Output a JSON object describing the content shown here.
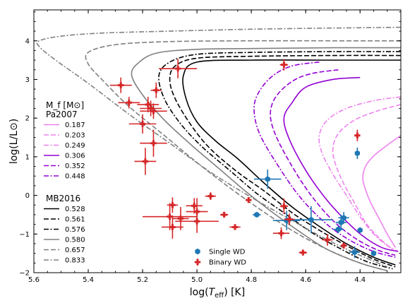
{
  "chart_data": {
    "type": "scatter",
    "xlabel": "log(T_eff) [K]",
    "ylabel": "log(L/L⊙)",
    "x_reversed": true,
    "xlim": [
      5.6,
      4.25
    ],
    "ylim": [
      -2,
      4.8
    ],
    "x_ticks": [
      5.6,
      5.4,
      5.2,
      5.0,
      4.8,
      4.6,
      4.4
    ],
    "y_ticks": [
      -2,
      -1,
      0,
      1,
      2,
      3,
      4
    ],
    "x_tick_labels": [
      "5.6",
      "5.4",
      "5.2",
      "5.0",
      "4.8",
      "4.6",
      "4.4"
    ],
    "y_tick_labels": [
      "−2",
      "−1",
      "0",
      "1",
      "2",
      "3",
      "4"
    ],
    "grid": false,
    "legend": {
      "placement": "left",
      "header": "M_f [M⊙]",
      "group1_title": "Pa2007",
      "group2_title": "MB2016"
    },
    "tracks": [
      {
        "group": "Pa2007",
        "name": "0.187",
        "color": "#ee82ee",
        "dash": "solid",
        "points": [
          [
            4.25,
            1.55
          ],
          [
            4.3,
            1.3
          ],
          [
            4.35,
            1.02
          ],
          [
            4.38,
            0.75
          ],
          [
            4.39,
            0.45
          ],
          [
            4.38,
            0.15
          ],
          [
            4.36,
            -0.2
          ],
          [
            4.33,
            -0.6
          ],
          [
            4.3,
            -1.0
          ],
          [
            4.27,
            -1.35
          ]
        ]
      },
      {
        "group": "Pa2007",
        "name": "0.203",
        "color": "#ee82ee",
        "dash": "longdash",
        "points": [
          [
            4.25,
            2.35
          ],
          [
            4.33,
            2.2
          ],
          [
            4.42,
            1.95
          ],
          [
            4.48,
            1.6
          ],
          [
            4.5,
            1.2
          ],
          [
            4.49,
            0.8
          ],
          [
            4.46,
            0.3
          ],
          [
            4.42,
            -0.2
          ],
          [
            4.38,
            -0.7
          ],
          [
            4.33,
            -1.1
          ],
          [
            4.28,
            -1.4
          ]
        ]
      },
      {
        "group": "Pa2007",
        "name": "0.249",
        "color": "#ee82ee",
        "dash": "dashdot",
        "points": [
          [
            4.25,
            2.55
          ],
          [
            4.35,
            2.45
          ],
          [
            4.45,
            2.25
          ],
          [
            4.52,
            1.95
          ],
          [
            4.55,
            1.55
          ],
          [
            4.54,
            1.1
          ],
          [
            4.5,
            0.55
          ],
          [
            4.45,
            0.0
          ],
          [
            4.4,
            -0.55
          ],
          [
            4.35,
            -1.0
          ],
          [
            4.3,
            -1.3
          ],
          [
            4.26,
            -1.45
          ]
        ]
      },
      {
        "group": "Pa2007",
        "name": "0.306",
        "color": "#9400d3",
        "dash": "solid",
        "points": [
          [
            4.4,
            3.05
          ],
          [
            4.5,
            3.0
          ],
          [
            4.6,
            2.8
          ],
          [
            4.65,
            2.4
          ],
          [
            4.68,
            2.0
          ],
          [
            4.66,
            1.45
          ],
          [
            4.6,
            0.65
          ],
          [
            4.53,
            -0.05
          ],
          [
            4.46,
            -0.6
          ],
          [
            4.39,
            -1.05
          ],
          [
            4.32,
            -1.35
          ],
          [
            4.26,
            -1.45
          ]
        ]
      },
      {
        "group": "Pa2007",
        "name": "0.352",
        "color": "#9400d3",
        "dash": "longdash",
        "points": [
          [
            4.48,
            3.25
          ],
          [
            4.58,
            3.15
          ],
          [
            4.65,
            2.95
          ],
          [
            4.71,
            2.55
          ],
          [
            4.73,
            2.1
          ],
          [
            4.71,
            1.55
          ],
          [
            4.65,
            0.75
          ],
          [
            4.58,
            0.0
          ],
          [
            4.5,
            -0.65
          ],
          [
            4.42,
            -1.1
          ],
          [
            4.34,
            -1.4
          ],
          [
            4.27,
            -1.55
          ]
        ]
      },
      {
        "group": "Pa2007",
        "name": "0.448",
        "color": "#9400d3",
        "dash": "dashdot",
        "points": [
          [
            4.55,
            3.45
          ],
          [
            4.65,
            3.35
          ],
          [
            4.72,
            3.1
          ],
          [
            4.77,
            2.7
          ],
          [
            4.79,
            2.25
          ],
          [
            4.77,
            1.6
          ],
          [
            4.7,
            0.75
          ],
          [
            4.62,
            -0.05
          ],
          [
            4.53,
            -0.7
          ],
          [
            4.44,
            -1.15
          ],
          [
            4.35,
            -1.45
          ],
          [
            4.27,
            -1.6
          ]
        ]
      },
      {
        "group": "MB2016",
        "name": "0.528",
        "color": "#000000",
        "dash": "solid",
        "points": [
          [
            4.25,
            3.5
          ],
          [
            4.5,
            3.5
          ],
          [
            4.8,
            3.5
          ],
          [
            5.0,
            3.45
          ],
          [
            5.05,
            3.1
          ],
          [
            5.04,
            2.5
          ],
          [
            5.0,
            1.9
          ],
          [
            4.93,
            1.4
          ],
          [
            4.85,
            0.95
          ],
          [
            4.75,
            0.3
          ],
          [
            4.65,
            -0.3
          ],
          [
            4.55,
            -0.8
          ],
          [
            4.45,
            -1.25
          ],
          [
            4.35,
            -1.6
          ],
          [
            4.27,
            -1.8
          ]
        ]
      },
      {
        "group": "MB2016",
        "name": "0.561",
        "color": "#000000",
        "dash": "longdash",
        "points": [
          [
            4.25,
            3.62
          ],
          [
            4.5,
            3.62
          ],
          [
            4.8,
            3.6
          ],
          [
            5.0,
            3.55
          ],
          [
            5.08,
            3.35
          ],
          [
            5.1,
            3.0
          ],
          [
            5.08,
            2.5
          ],
          [
            5.02,
            1.8
          ],
          [
            4.95,
            1.2
          ],
          [
            4.85,
            0.6
          ],
          [
            4.75,
            0.1
          ],
          [
            4.65,
            -0.45
          ],
          [
            4.55,
            -0.9
          ],
          [
            4.45,
            -1.3
          ],
          [
            4.35,
            -1.65
          ],
          [
            4.27,
            -1.85
          ]
        ]
      },
      {
        "group": "MB2016",
        "name": "0.576",
        "color": "#000000",
        "dash": "dashdot",
        "points": [
          [
            4.25,
            3.72
          ],
          [
            4.5,
            3.72
          ],
          [
            4.8,
            3.7
          ],
          [
            5.0,
            3.65
          ],
          [
            5.1,
            3.45
          ],
          [
            5.14,
            3.1
          ],
          [
            5.12,
            2.5
          ],
          [
            5.06,
            1.85
          ],
          [
            4.98,
            1.25
          ],
          [
            4.88,
            0.65
          ],
          [
            4.78,
            0.05
          ],
          [
            4.68,
            -0.45
          ],
          [
            4.58,
            -0.95
          ],
          [
            4.48,
            -1.35
          ],
          [
            4.38,
            -1.7
          ],
          [
            4.28,
            -1.9
          ]
        ]
      },
      {
        "group": "MB2016",
        "name": "0.580",
        "color": "#808080",
        "dash": "solid",
        "points": [
          [
            4.25,
            3.82
          ],
          [
            4.5,
            3.82
          ],
          [
            4.8,
            3.8
          ],
          [
            5.0,
            3.78
          ],
          [
            5.15,
            3.68
          ],
          [
            5.22,
            3.4
          ],
          [
            5.24,
            3.1
          ],
          [
            5.2,
            2.6
          ],
          [
            5.12,
            1.95
          ],
          [
            5.02,
            1.3
          ],
          [
            4.92,
            0.7
          ],
          [
            4.82,
            0.1
          ],
          [
            4.72,
            -0.45
          ],
          [
            4.62,
            -0.95
          ],
          [
            4.52,
            -1.4
          ],
          [
            4.4,
            -1.75
          ],
          [
            4.3,
            -1.95
          ]
        ]
      },
      {
        "group": "MB2016",
        "name": "0.657",
        "color": "#808080",
        "dash": "longdash",
        "points": [
          [
            4.25,
            4.0
          ],
          [
            4.5,
            4.0
          ],
          [
            4.8,
            4.0
          ],
          [
            5.1,
            3.98
          ],
          [
            5.3,
            3.9
          ],
          [
            5.4,
            3.7
          ],
          [
            5.4,
            3.4
          ],
          [
            5.35,
            3.0
          ],
          [
            5.25,
            2.3
          ],
          [
            5.12,
            1.55
          ],
          [
            5.0,
            0.85
          ],
          [
            4.88,
            0.2
          ],
          [
            4.76,
            -0.4
          ],
          [
            4.64,
            -0.95
          ],
          [
            4.52,
            -1.4
          ],
          [
            4.4,
            -1.75
          ],
          [
            4.3,
            -1.95
          ]
        ]
      },
      {
        "group": "MB2016",
        "name": "0.833",
        "color": "#808080",
        "dash": "dashdot",
        "points": [
          [
            4.25,
            4.35
          ],
          [
            4.5,
            4.33
          ],
          [
            4.8,
            4.3
          ],
          [
            5.1,
            4.25
          ],
          [
            5.35,
            4.2
          ],
          [
            5.5,
            4.12
          ],
          [
            5.58,
            4.0
          ],
          [
            5.58,
            3.85
          ],
          [
            5.52,
            3.5
          ],
          [
            5.4,
            2.9
          ],
          [
            5.25,
            2.1
          ],
          [
            5.1,
            1.35
          ],
          [
            4.95,
            0.6
          ],
          [
            4.8,
            -0.05
          ],
          [
            4.65,
            -0.65
          ],
          [
            4.52,
            -1.15
          ],
          [
            4.4,
            -1.55
          ],
          [
            4.3,
            -1.85
          ]
        ]
      }
    ],
    "series": [
      {
        "name": "Single WD",
        "marker": "hexagon",
        "color": "#1f77b4",
        "points": [
          {
            "x": 4.41,
            "y": 1.09,
            "xerr": 0.0,
            "yerr": 0.15
          },
          {
            "x": 4.74,
            "y": 0.42,
            "xerr": 0.05,
            "yerr": 0.25
          },
          {
            "x": 4.78,
            "y": -0.5,
            "xerr": 0.015,
            "yerr": 0.0
          },
          {
            "x": 4.67,
            "y": -0.65,
            "xerr": 0.05,
            "yerr": 0.25
          },
          {
            "x": 4.58,
            "y": -0.63,
            "xerr": 0.08,
            "yerr": 0.35
          },
          {
            "x": 4.47,
            "y": -0.7,
            "xerr": 0.02,
            "yerr": 0.2
          },
          {
            "x": 4.46,
            "y": -0.58,
            "xerr": 0.02,
            "yerr": 0.15
          },
          {
            "x": 4.48,
            "y": -0.88,
            "xerr": 0.02,
            "yerr": 0.1
          },
          {
            "x": 4.4,
            "y": -0.9,
            "xerr": 0.0,
            "yerr": 0.0
          },
          {
            "x": 4.42,
            "y": -1.47,
            "xerr": 0.02,
            "yerr": 0.15
          },
          {
            "x": 4.35,
            "y": -1.5,
            "xerr": 0.0,
            "yerr": 0.0
          }
        ]
      },
      {
        "name": "Binary WD",
        "marker": "plus",
        "color": "#d62728",
        "points": [
          {
            "x": 4.68,
            "y": 3.38,
            "xerr": 0.015,
            "yerr": 0.15
          },
          {
            "x": 5.07,
            "y": 3.28,
            "xerr": 0.07,
            "yerr": 0.25
          },
          {
            "x": 5.28,
            "y": 2.85,
            "xerr": 0.04,
            "yerr": 0.2
          },
          {
            "x": 5.15,
            "y": 2.72,
            "xerr": 0.02,
            "yerr": 0.2
          },
          {
            "x": 5.25,
            "y": 2.4,
            "xerr": 0.04,
            "yerr": 0.15
          },
          {
            "x": 5.18,
            "y": 2.35,
            "xerr": 0.04,
            "yerr": 0.2
          },
          {
            "x": 5.17,
            "y": 2.25,
            "xerr": 0.04,
            "yerr": 0.2
          },
          {
            "x": 5.16,
            "y": 2.18,
            "xerr": 0.05,
            "yerr": 0.2
          },
          {
            "x": 5.2,
            "y": 1.85,
            "xerr": 0.05,
            "yerr": 0.25
          },
          {
            "x": 5.16,
            "y": 1.35,
            "xerr": 0.05,
            "yerr": 0.35
          },
          {
            "x": 5.19,
            "y": 0.88,
            "xerr": 0.04,
            "yerr": 0.35
          },
          {
            "x": 4.41,
            "y": 1.55,
            "xerr": 0.0,
            "yerr": 0.15
          },
          {
            "x": 4.95,
            "y": -0.02,
            "xerr": 0.02,
            "yerr": 0.1
          },
          {
            "x": 4.81,
            "y": -0.12,
            "xerr": 0.0,
            "yerr": 0.0
          },
          {
            "x": 5.09,
            "y": -0.25,
            "xerr": 0.02,
            "yerr": 0.2
          },
          {
            "x": 5.01,
            "y": -0.27,
            "xerr": 0.03,
            "yerr": 0.2
          },
          {
            "x": 4.68,
            "y": -0.28,
            "xerr": 0.015,
            "yerr": 0.2
          },
          {
            "x": 5.0,
            "y": -0.42,
            "xerr": 0.04,
            "yerr": 0.35
          },
          {
            "x": 4.9,
            "y": -0.5,
            "xerr": 0.015,
            "yerr": 0.0
          },
          {
            "x": 5.1,
            "y": -0.55,
            "xerr": 0.1,
            "yerr": 0.35
          },
          {
            "x": 5.06,
            "y": -0.6,
            "xerr": 0.03,
            "yerr": 0.3
          },
          {
            "x": 5.0,
            "y": -0.67,
            "xerr": 0.08,
            "yerr": 0.3
          },
          {
            "x": 4.66,
            "y": -0.62,
            "xerr": 0.02,
            "yerr": 0.15
          },
          {
            "x": 4.86,
            "y": -0.82,
            "xerr": 0.02,
            "yerr": 0.0
          },
          {
            "x": 5.09,
            "y": -0.82,
            "xerr": 0.04,
            "yerr": 0.3
          },
          {
            "x": 4.69,
            "y": -0.98,
            "xerr": 0.03,
            "yerr": 0.15
          },
          {
            "x": 4.52,
            "y": -1.15,
            "xerr": 0.02,
            "yerr": 0.15
          },
          {
            "x": 4.46,
            "y": -1.3,
            "xerr": 0.0,
            "yerr": 0.0
          },
          {
            "x": 4.61,
            "y": -1.48,
            "xerr": 0.015,
            "yerr": 0.0
          }
        ]
      }
    ]
  }
}
